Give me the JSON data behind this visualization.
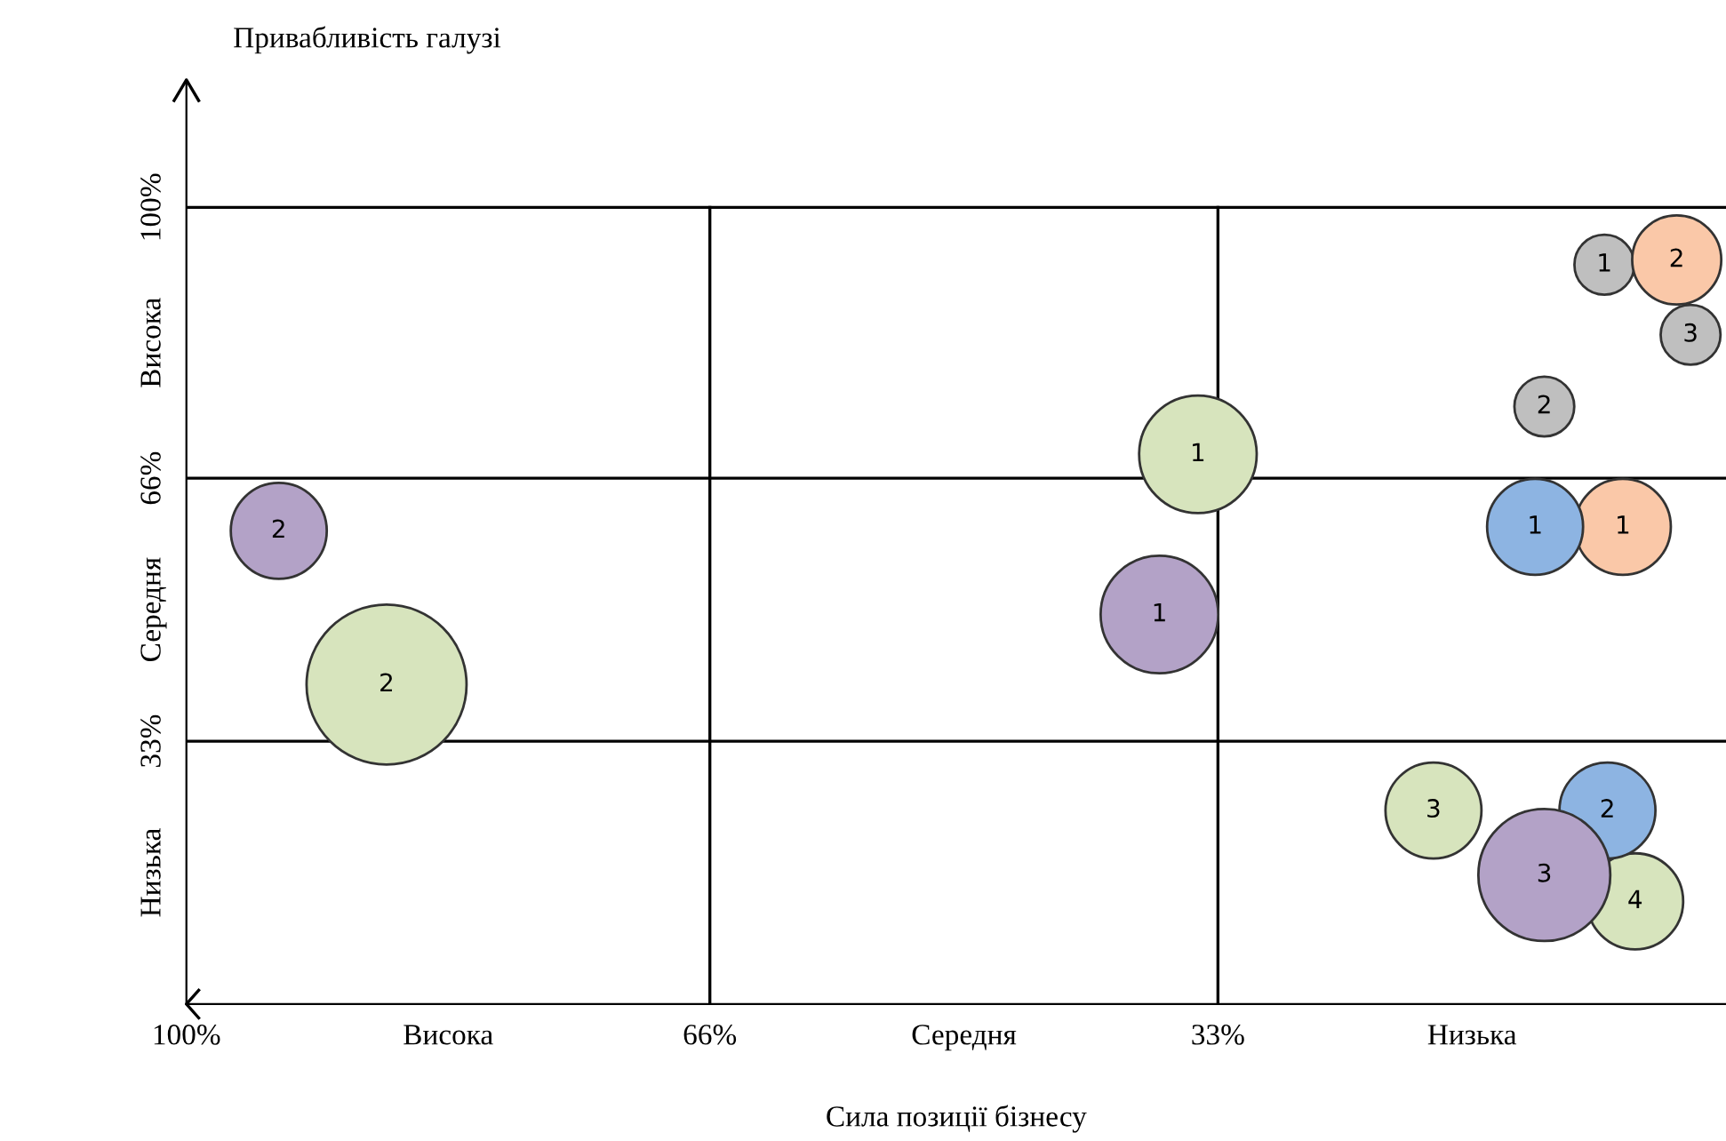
{
  "chart_data": {
    "type": "bubble",
    "xlabel": "Сила позиції бізнесу",
    "ylabel": "Привабливість галузі",
    "xlim": [
      100,
      0
    ],
    "ylim": [
      0,
      116
    ],
    "xticks": [
      {
        "value": 100,
        "label": "100%"
      },
      {
        "value": 83,
        "label": "Висока"
      },
      {
        "value": 66,
        "label": "66%"
      },
      {
        "value": 49.5,
        "label": "Середня"
      },
      {
        "value": 33,
        "label": "33%"
      },
      {
        "value": 16.5,
        "label": "Низька"
      }
    ],
    "yticks": [
      {
        "value": 100,
        "label": "100%"
      },
      {
        "value": 83,
        "label": "Висока"
      },
      {
        "value": 66,
        "label": "66%"
      },
      {
        "value": 49.5,
        "label": "Середня"
      },
      {
        "value": 33,
        "label": "33%"
      },
      {
        "value": 16.5,
        "label": "Низька"
      }
    ],
    "ref_lines": [
      {
        "axis": "x",
        "value": 66
      },
      {
        "axis": "x",
        "value": 33
      },
      {
        "axis": "y",
        "value": 100
      },
      {
        "axis": "y",
        "value": 66
      },
      {
        "axis": "y",
        "value": 33
      }
    ],
    "grid": false,
    "legend": false,
    "series": [
      {
        "color": "#bfbfbf",
        "x": [
          7.9,
          2.3,
          11.8
        ],
        "values": [
          92.8,
          84,
          75
        ],
        "sizes": [
          0.14,
          0.14,
          0.14
        ]
      },
      {
        "color": "#fac8a8",
        "x": [
          3.2,
          6.7
        ],
        "values": [
          93.4,
          59.9
        ],
        "sizes": [
          0.31,
          0.36
        ]
      },
      {
        "color": "#d7e4bd",
        "x": [
          34.3,
          87,
          19,
          5.9
        ],
        "values": [
          69,
          40.1,
          24.3,
          12.9
        ],
        "sizes": [
          0.54,
          1,
          0.36,
          0.36
        ]
      },
      {
        "color": "#8db4e2",
        "x": [
          12.4,
          7.7
        ],
        "values": [
          59.9,
          24.3
        ],
        "sizes": [
          0.36,
          0.36
        ]
      },
      {
        "color": "#b3a2c7",
        "x": [
          94,
          36.8,
          11.8
        ],
        "values": [
          59.4,
          48.9,
          16.2
        ],
        "sizes": [
          0.36,
          0.54,
          0.68
        ]
      }
    ],
    "annotations": [
      {
        "text": "1",
        "x": 7.9,
        "y": 92.8
      },
      {
        "text": "3",
        "x": 2.3,
        "y": 84
      },
      {
        "text": "2",
        "x": 11.8,
        "y": 75
      },
      {
        "text": "2",
        "x": 3.2,
        "y": 93.4
      },
      {
        "text": "1",
        "x": 6.7,
        "y": 59.9
      },
      {
        "text": "1",
        "x": 34.3,
        "y": 69
      },
      {
        "text": "2",
        "x": 87,
        "y": 40.1
      },
      {
        "text": "3",
        "x": 19,
        "y": 24.3
      },
      {
        "text": "4",
        "x": 5.9,
        "y": 12.9
      },
      {
        "text": "1",
        "x": 12.4,
        "y": 59.9
      },
      {
        "text": "2",
        "x": 7.7,
        "y": 24.3
      },
      {
        "text": "2",
        "x": 94,
        "y": 59.4
      },
      {
        "text": "1",
        "x": 36.8,
        "y": 48.9
      },
      {
        "text": "3",
        "x": 11.8,
        "y": 16.2
      }
    ]
  }
}
